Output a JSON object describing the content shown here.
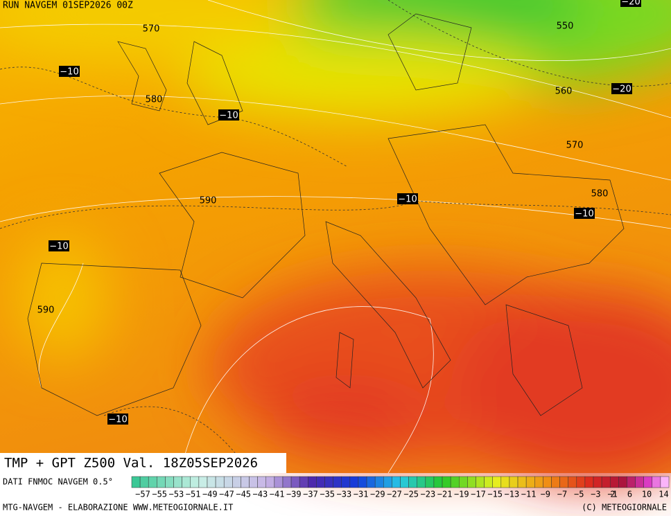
{
  "header": {
    "run": "RUN NAVGEM 01SEP2026 00Z"
  },
  "contours": [
    {
      "label": "570"
    },
    {
      "label": "−10"
    },
    {
      "label": "580"
    },
    {
      "label": "−10"
    },
    {
      "label": "590"
    },
    {
      "label": "−10"
    },
    {
      "label": "−10"
    },
    {
      "label": "590"
    },
    {
      "label": "−10"
    },
    {
      "label": "550"
    },
    {
      "label": "560"
    },
    {
      "label": "−20"
    },
    {
      "label": "570"
    },
    {
      "label": "580"
    },
    {
      "label": "−10"
    },
    {
      "label": "−20"
    }
  ],
  "footer": {
    "title": "TMP + GPT Z500 Val. 18Z05SEP2026",
    "source": "DATI FNMOC NAVGEM 0.5°",
    "credit": "MTG-NAVGEM - ELABORAZIONE WWW.METEOGIORNALE.IT",
    "copyright": "(C) METEOGIORNALE"
  },
  "colorbar": {
    "labels": [
      "−57",
      "−55",
      "−53",
      "−51",
      "−49",
      "−47",
      "−45",
      "−43",
      "−41",
      "−39",
      "−37",
      "−35",
      "−33",
      "−31",
      "−29",
      "−27",
      "−25",
      "−23",
      "−21",
      "−19",
      "−17",
      "−15",
      "−13",
      "−11",
      "−9",
      "−7",
      "−5",
      "−3",
      "−1",
      "2",
      "6",
      "10",
      "14"
    ]
  }
}
